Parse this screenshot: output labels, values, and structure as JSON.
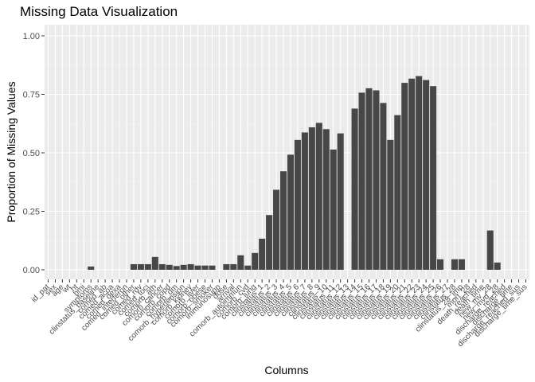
{
  "chart_data": {
    "type": "bar",
    "title": "Missing Data Visualization",
    "xlabel": "Columns",
    "ylabel": "Proportion of Missing Values",
    "ylim": [
      0,
      1.0
    ],
    "yticks": [
      0.0,
      0.25,
      0.5,
      0.75,
      1.0
    ],
    "ytick_labels": [
      "0.00",
      "0.25",
      "0.50",
      "0.75",
      "1.00"
    ],
    "grid": true,
    "legend": "none",
    "colors": {
      "panel": "#EBEBEB",
      "grid_major": "#FFFFFF",
      "grid_minor": "#F5F5F5",
      "bar": "#474747",
      "tick": "#333333"
    },
    "categories": [
      "id_pat",
      "sex",
      "age",
      "wt",
      "ht",
      "bmi",
      "symptoms",
      "clinstatus_baseline",
      "comed_ab",
      "comed_acoa",
      "comed_dexa",
      "comed_interferon",
      "comed_other",
      "comed_rdv",
      "comed_toci",
      "comorb_ath",
      "comorb_cancer",
      "comorb_copd",
      "comorb_dm",
      "comorb_hypertension",
      "comorb_kidney",
      "comorb_liver",
      "comorb_obese",
      "comorb_smoker",
      "immunosupp",
      "dose",
      "arrival",
      "comorb_autoimmun",
      "comorb_cvd",
      "comorb_lung",
      "clinstatus_1",
      "clinstatus_2",
      "clinstatus_3",
      "clinstatus_4",
      "clinstatus_5",
      "clinstatus_6",
      "clinstatus_7",
      "clinstatus_8",
      "clinstatus_9",
      "clinstatus_10",
      "clinstatus_11",
      "clinstatus_12",
      "clinstatus_13",
      "clinstatus_14",
      "clinstatus_15",
      "clinstatus_16",
      "clinstatus_17",
      "clinstatus_18",
      "clinstatus_19",
      "clinstatus_20",
      "clinstatus_21",
      "clinstatus_22",
      "clinstatus_23",
      "clinstatus_24",
      "clinstatus_25",
      "clinstatus_26",
      "clinstatus_27",
      "clinstatus_28",
      "clinstatus_28_imp",
      "mort_28",
      "death_reached",
      "death_time",
      "new_mv_28",
      "new_mvd_28",
      "discharge_reached",
      "discharge_time",
      "discharge_reached_sus",
      "discharge_time_sus"
    ],
    "values": [
      0,
      0,
      0,
      0,
      0,
      0,
      0.014,
      0,
      0,
      0,
      0,
      0,
      0.024,
      0.024,
      0.024,
      0.055,
      0.024,
      0.021,
      0.016,
      0.021,
      0.024,
      0.018,
      0.018,
      0.018,
      0,
      0.024,
      0.024,
      0.062,
      0.018,
      0.072,
      0.133,
      0.234,
      0.342,
      0.421,
      0.492,
      0.555,
      0.587,
      0.609,
      0.628,
      0.601,
      0.514,
      0.583,
      0,
      0.689,
      0.757,
      0.776,
      0.767,
      0.713,
      0.555,
      0.661,
      0.799,
      0.817,
      0.828,
      0.811,
      0.785,
      0.045,
      0,
      0.045,
      0.045,
      0,
      0,
      0,
      0.168,
      0.031,
      0,
      0,
      0,
      0
    ]
  }
}
